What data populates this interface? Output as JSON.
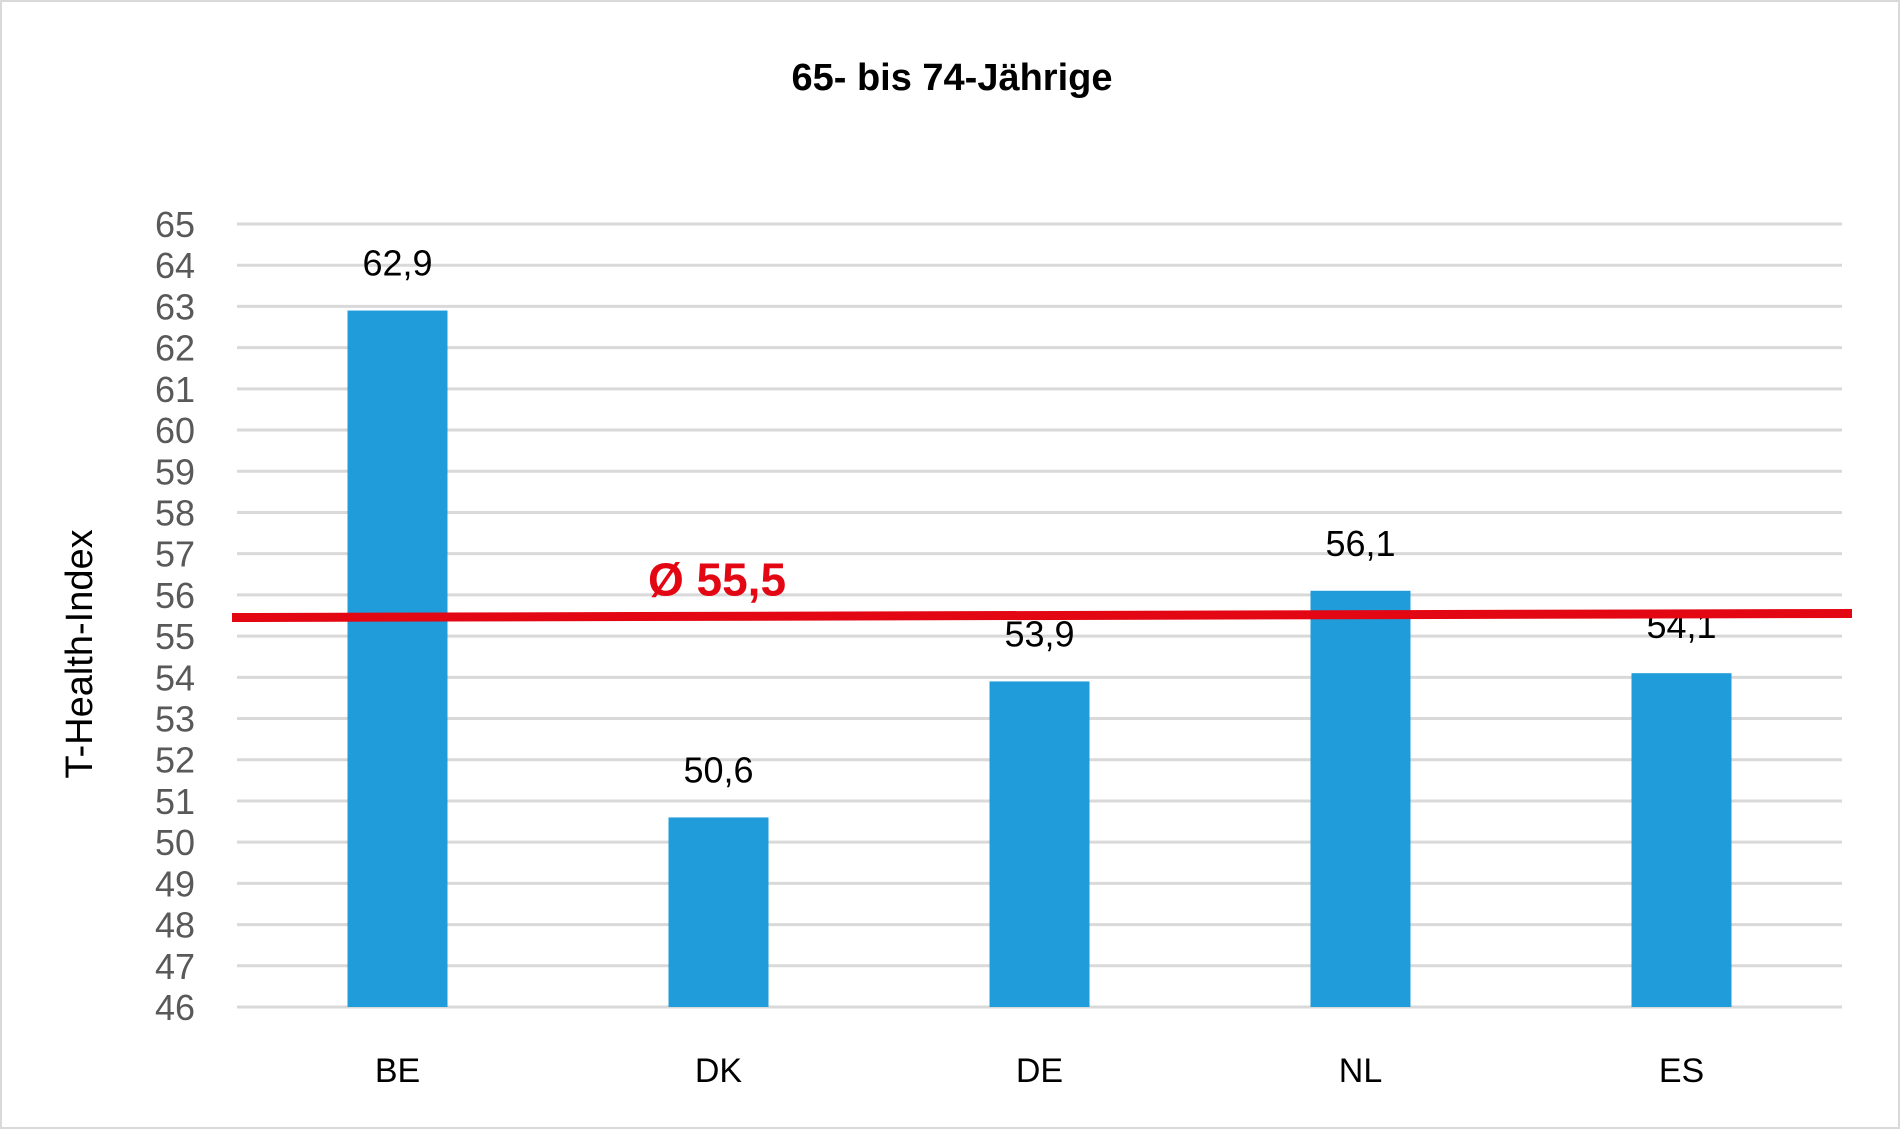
{
  "chart_data": {
    "type": "bar",
    "title": "65- bis 74-Jährige",
    "ylabel": "T-Health-Index",
    "xlabel": "",
    "categories": [
      "BE",
      "DK",
      "DE",
      "NL",
      "ES"
    ],
    "values": [
      62.9,
      50.6,
      53.9,
      56.1,
      54.1
    ],
    "value_labels": [
      "62,9",
      "50,6",
      "53,9",
      "56,1",
      "54,1"
    ],
    "ylim": [
      46,
      65
    ],
    "yticks": [
      46,
      47,
      48,
      49,
      50,
      51,
      52,
      53,
      54,
      55,
      56,
      57,
      58,
      59,
      60,
      61,
      62,
      63,
      64,
      65
    ],
    "grid": true,
    "legend": "none",
    "bar_color": "#1f9cd9",
    "average": {
      "value": 55.5,
      "label": "Ø 55,5",
      "color": "#e30613"
    }
  }
}
